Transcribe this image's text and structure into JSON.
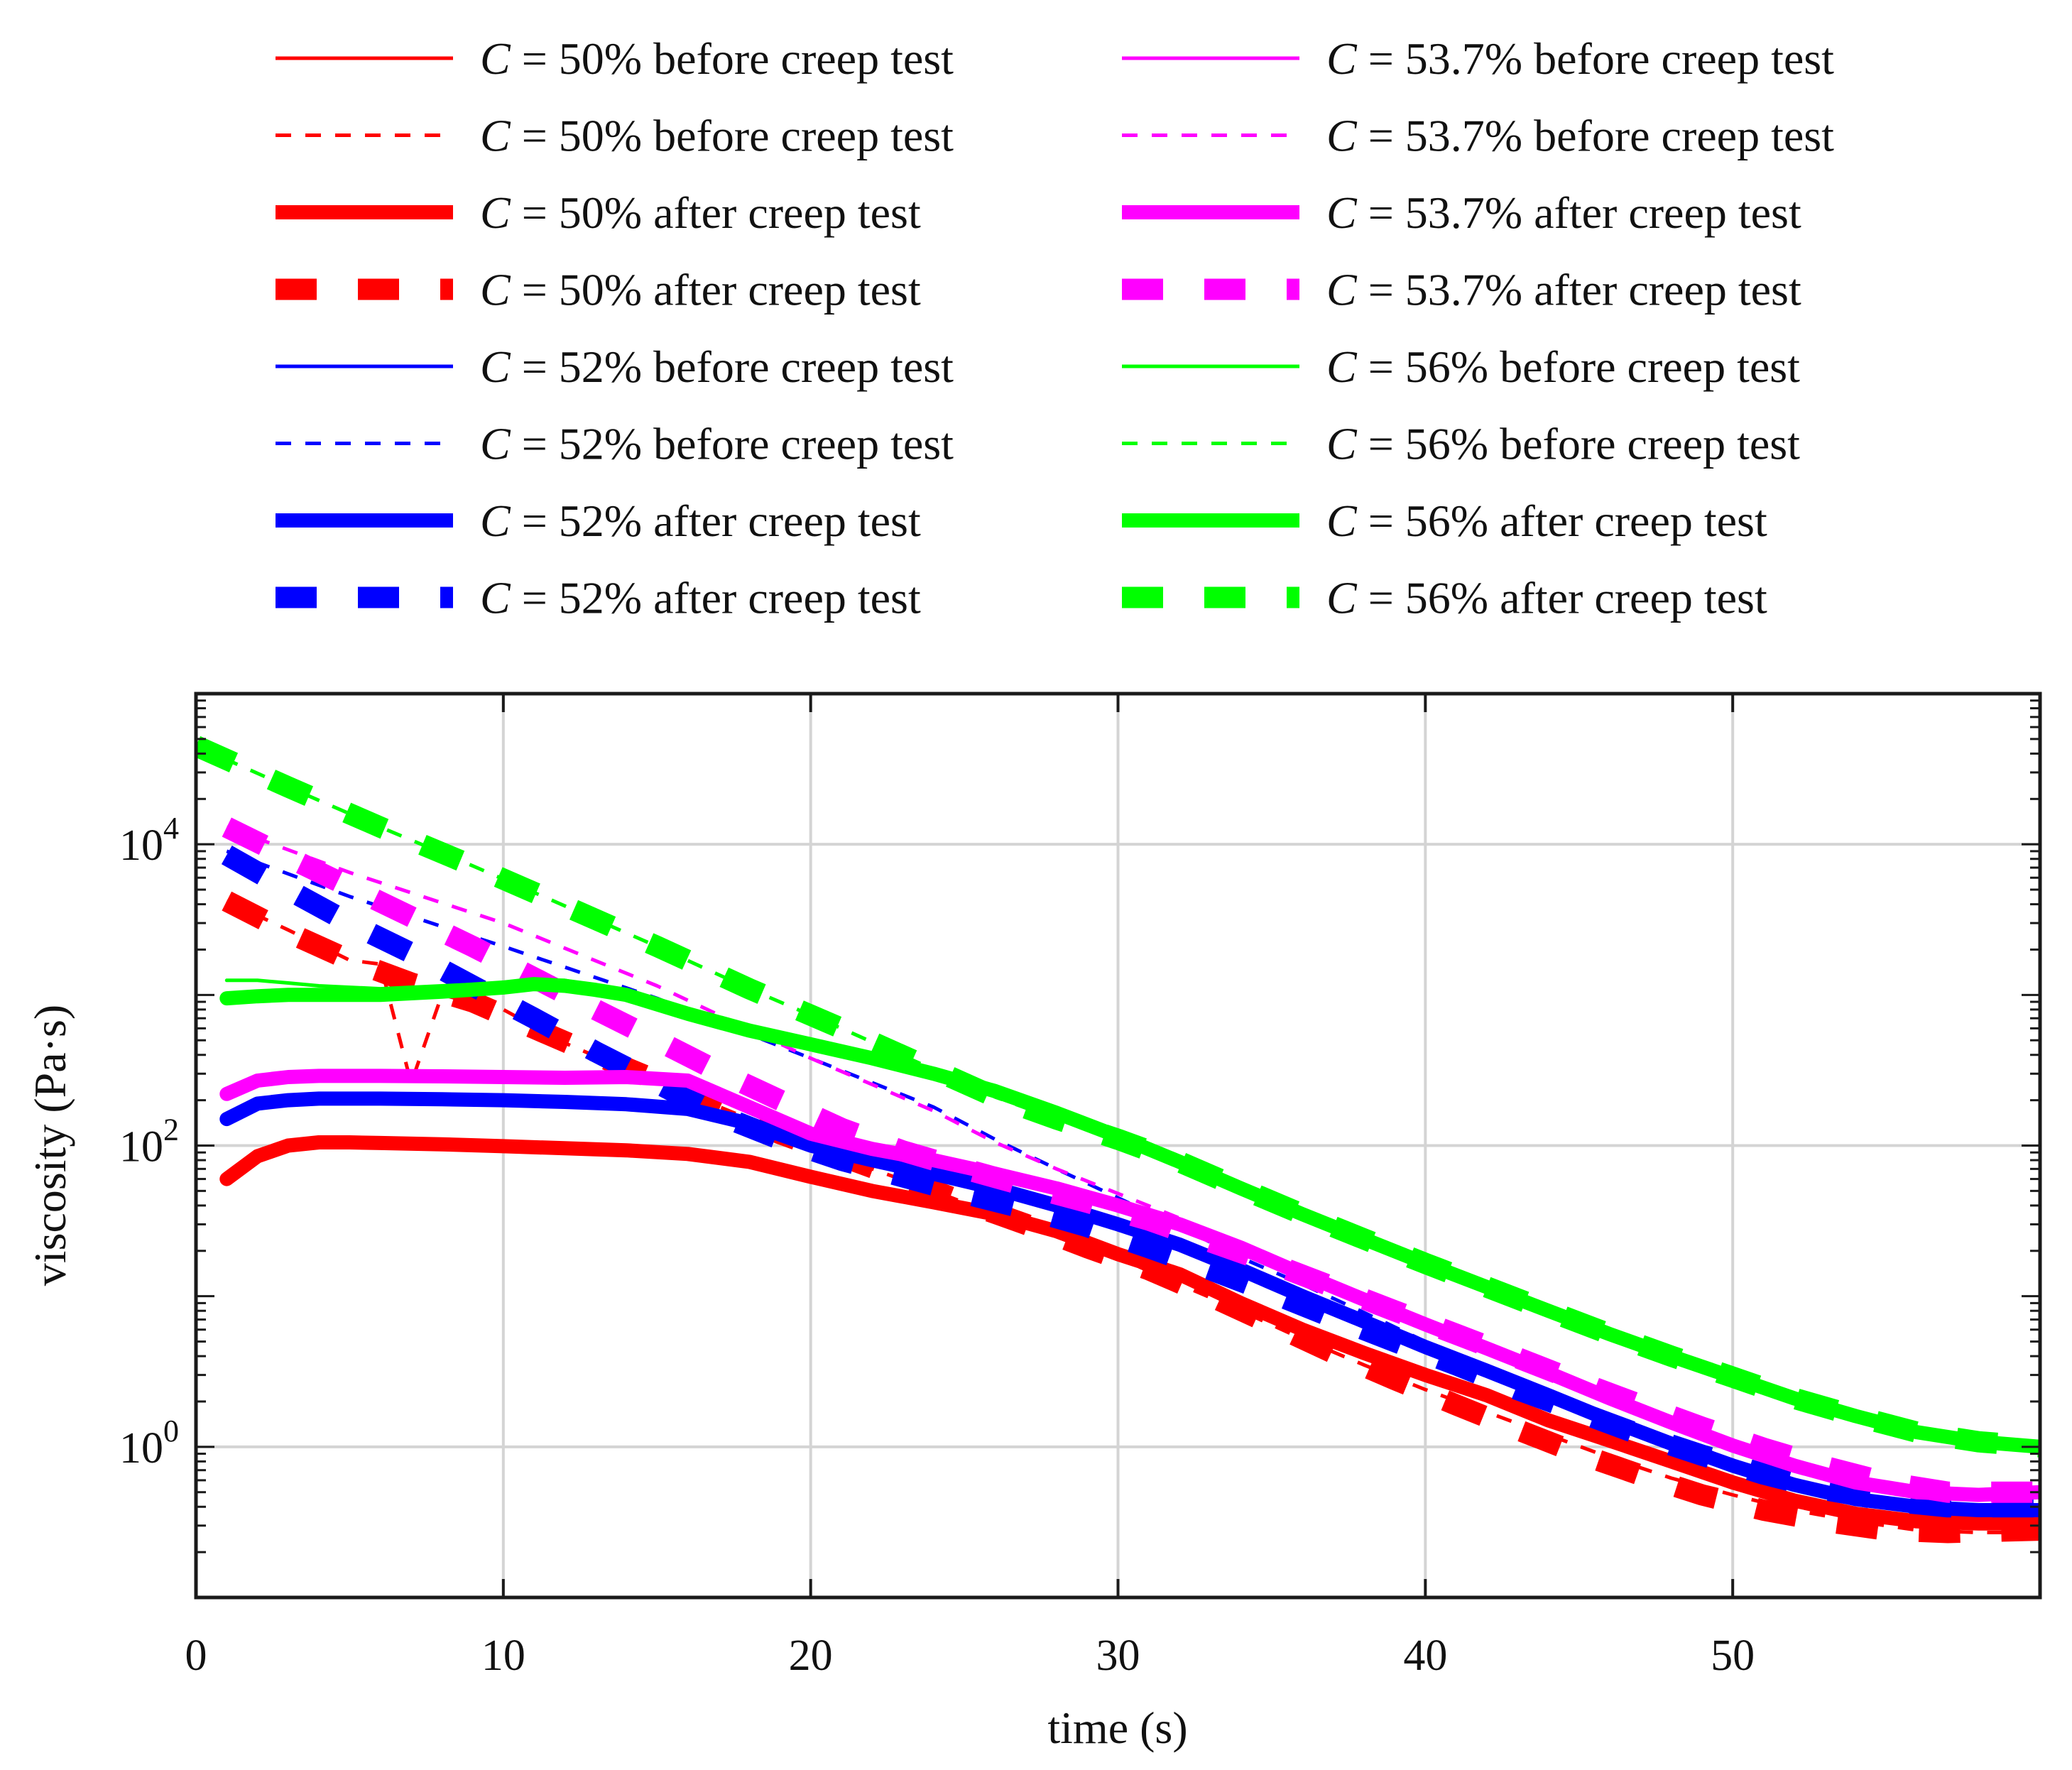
{
  "chart_data": {
    "type": "line",
    "title": "",
    "xlabel": "time (s)",
    "ylabel": "viscosity (Pa·s)",
    "xlim": [
      0,
      60
    ],
    "yscale": "log",
    "ylim": [
      0.1,
      100000
    ],
    "grid": true,
    "x_ticks": [
      0,
      10,
      20,
      30,
      40,
      50
    ],
    "x_tick_labels": [
      "0",
      "10",
      "20",
      "30",
      "40",
      "50"
    ],
    "y_ticks": [
      1,
      100,
      10000
    ],
    "y_tick_labels": [
      {
        "base": "10",
        "exp": "0"
      },
      {
        "base": "10",
        "exp": "2"
      },
      {
        "base": "10",
        "exp": "4"
      }
    ],
    "legend": {
      "placement": "top, two columns",
      "var": "C",
      "eq": " = "
    },
    "series": [
      {
        "name": "C = 50% before creep test",
        "conc": "50%",
        "desc": " before creep test",
        "color": "#ff0000",
        "style": "solid",
        "weight": "thin",
        "x": [
          1,
          2,
          3,
          4,
          5,
          6,
          8,
          10,
          12,
          14,
          16,
          18,
          20,
          22,
          24,
          26,
          28,
          30,
          32,
          34,
          36,
          38,
          40,
          42,
          44,
          46,
          48,
          50,
          52,
          54,
          56,
          58,
          60
        ],
        "y": [
          60,
          85,
          100,
          105,
          105,
          104,
          102,
          99,
          96,
          93,
          88,
          78,
          62,
          50,
          42,
          35,
          27,
          19,
          14,
          9,
          6,
          4.2,
          3,
          2.2,
          1.5,
          1.1,
          0.8,
          0.58,
          0.44,
          0.36,
          0.32,
          0.31,
          0.31
        ]
      },
      {
        "name": "C = 50% before creep test",
        "conc": "50%",
        "desc": " before creep test",
        "color": "#ff0000",
        "style": "dashed",
        "weight": "thin",
        "x": [
          1,
          3,
          5,
          6,
          7,
          8,
          10,
          12,
          14,
          16,
          18,
          20,
          22,
          24,
          26,
          28,
          30,
          32,
          34,
          36,
          38,
          40,
          42,
          44,
          46,
          48,
          50,
          52,
          54,
          56,
          58,
          60
        ],
        "y": [
          4200,
          2700,
          1700,
          1600,
          260,
          1000,
          800,
          480,
          320,
          220,
          150,
          100,
          70,
          50,
          35,
          25,
          18,
          12,
          8,
          5.2,
          3.5,
          2.4,
          1.7,
          1.2,
          0.85,
          0.62,
          0.48,
          0.38,
          0.32,
          0.28,
          0.27,
          0.27
        ]
      },
      {
        "name": "C = 50% after creep test",
        "conc": "50%",
        "desc": " after creep test",
        "color": "#ff0000",
        "style": "solid",
        "weight": "thick",
        "x": [
          1,
          2,
          3,
          4,
          5,
          6,
          8,
          10,
          12,
          14,
          16,
          18,
          20,
          22,
          24,
          26,
          28,
          30,
          32,
          34,
          36,
          38,
          40,
          42,
          44,
          46,
          48,
          50,
          52,
          54,
          56,
          58,
          60
        ],
        "y": [
          60,
          85,
          100,
          105,
          105,
          104,
          102,
          99,
          96,
          93,
          88,
          78,
          62,
          50,
          42,
          35,
          27,
          19,
          14,
          9,
          6,
          4.2,
          3,
          2.2,
          1.5,
          1.1,
          0.8,
          0.58,
          0.44,
          0.36,
          0.32,
          0.31,
          0.31
        ]
      },
      {
        "name": "C = 50% after creep test",
        "conc": "50%",
        "desc": " after creep test",
        "color": "#ff0000",
        "style": "dashed",
        "weight": "thick",
        "x": [
          1,
          3,
          5,
          7,
          9,
          11,
          13,
          15,
          17,
          19,
          21,
          23,
          25,
          27,
          29,
          31,
          33,
          35,
          37,
          39,
          41,
          43,
          45,
          47,
          49,
          51,
          53,
          55,
          57,
          60
        ],
        "y": [
          4200,
          2600,
          1700,
          1200,
          900,
          600,
          400,
          270,
          180,
          120,
          85,
          60,
          42,
          30,
          21,
          15,
          10,
          6.5,
          4.2,
          2.8,
          1.9,
          1.3,
          0.9,
          0.65,
          0.48,
          0.38,
          0.32,
          0.28,
          0.27,
          0.28
        ]
      },
      {
        "name": "C = 52% before creep test",
        "conc": "52%",
        "desc": " before creep test",
        "color": "#0000ff",
        "style": "solid",
        "weight": "thin",
        "x": [
          1,
          2,
          3,
          4,
          5,
          6,
          8,
          10,
          12,
          14,
          16,
          18,
          20,
          22,
          24,
          26,
          28,
          30,
          32,
          34,
          36,
          38,
          40,
          42,
          44,
          46,
          48,
          50,
          52,
          54,
          56,
          58,
          60
        ],
        "y": [
          150,
          190,
          200,
          205,
          205,
          205,
          203,
          200,
          195,
          188,
          175,
          140,
          100,
          80,
          65,
          52,
          40,
          30,
          22,
          15,
          10,
          6.8,
          4.6,
          3.2,
          2.2,
          1.5,
          1.05,
          0.75,
          0.56,
          0.45,
          0.4,
          0.38,
          0.38
        ]
      },
      {
        "name": "C = 52% before creep test",
        "conc": "52%",
        "desc": " before creep test",
        "color": "#0000ff",
        "style": "dashed",
        "weight": "thin",
        "x": [
          1,
          5,
          10,
          15,
          20,
          24,
          26,
          28,
          30,
          32,
          34,
          36,
          38,
          40,
          42,
          44,
          46,
          48,
          50,
          52,
          54,
          56,
          58,
          60
        ],
        "y": [
          9000,
          4500,
          2100,
          950,
          380,
          180,
          110,
          70,
          45,
          29,
          18,
          12,
          7.8,
          5,
          3.4,
          2.3,
          1.6,
          1.12,
          0.8,
          0.6,
          0.48,
          0.42,
          0.4,
          0.4
        ]
      },
      {
        "name": "C = 52% after creep test",
        "conc": "52%",
        "desc": " after creep test",
        "color": "#0000ff",
        "style": "solid",
        "weight": "thick",
        "x": [
          1,
          2,
          3,
          4,
          5,
          6,
          8,
          10,
          12,
          14,
          16,
          18,
          20,
          22,
          24,
          26,
          28,
          30,
          32,
          34,
          36,
          38,
          40,
          42,
          44,
          46,
          48,
          50,
          52,
          54,
          56,
          58,
          60
        ],
        "y": [
          150,
          190,
          200,
          205,
          205,
          205,
          203,
          200,
          195,
          188,
          175,
          140,
          100,
          80,
          65,
          52,
          40,
          30,
          22,
          15,
          10,
          6.8,
          4.6,
          3.2,
          2.2,
          1.5,
          1.05,
          0.75,
          0.56,
          0.45,
          0.4,
          0.38,
          0.38
        ]
      },
      {
        "name": "C = 52% after creep test",
        "conc": "52%",
        "desc": " after creep test",
        "color": "#0000ff",
        "style": "dashed",
        "weight": "thick",
        "x": [
          1,
          3,
          5,
          7,
          9,
          11,
          13,
          15,
          17,
          19,
          21,
          23,
          25,
          27,
          29,
          31,
          33,
          35,
          37,
          39,
          41,
          43,
          45,
          47,
          49,
          51,
          53,
          55,
          57,
          60
        ],
        "y": [
          8500,
          5000,
          3000,
          1900,
          1150,
          700,
          420,
          260,
          160,
          110,
          80,
          62,
          48,
          38,
          29,
          21,
          15,
          10.5,
          7.2,
          5,
          3.5,
          2.4,
          1.7,
          1.2,
          0.88,
          0.66,
          0.52,
          0.44,
          0.4,
          0.4
        ]
      },
      {
        "name": "C = 53.7% before creep test",
        "conc": "53.7%",
        "desc": " before creep test",
        "color": "#ff00ff",
        "style": "solid",
        "weight": "thin",
        "x": [
          1,
          2,
          3,
          4,
          5,
          6,
          8,
          10,
          12,
          14,
          16,
          18,
          20,
          22,
          24,
          26,
          28,
          30,
          32,
          34,
          36,
          38,
          40,
          42,
          44,
          46,
          48,
          50,
          52,
          54,
          56,
          58,
          60
        ],
        "y": [
          220,
          270,
          285,
          290,
          290,
          290,
          288,
          285,
          282,
          285,
          270,
          180,
          120,
          95,
          80,
          65,
          52,
          40,
          30,
          21,
          14,
          9.5,
          6.5,
          4.5,
          3.1,
          2.1,
          1.45,
          1.02,
          0.75,
          0.58,
          0.5,
          0.48,
          0.5
        ]
      },
      {
        "name": "C = 53.7% before creep test",
        "conc": "53.7%",
        "desc": " before creep test",
        "color": "#ff00ff",
        "style": "dashed",
        "weight": "thin",
        "x": [
          1,
          5,
          10,
          15,
          20,
          24,
          26,
          28,
          30,
          32,
          34,
          36,
          38,
          40,
          42,
          44,
          46,
          48,
          50,
          52,
          54,
          56,
          58,
          60
        ],
        "y": [
          13000,
          6500,
          3000,
          1150,
          380,
          170,
          105,
          70,
          48,
          33,
          22,
          15,
          10,
          6.8,
          4.6,
          3.1,
          2.1,
          1.45,
          1.02,
          0.75,
          0.58,
          0.5,
          0.48,
          0.5
        ]
      },
      {
        "name": "C = 53.7% after creep test",
        "conc": "53.7%",
        "desc": " after creep test",
        "color": "#ff00ff",
        "style": "solid",
        "weight": "thick",
        "x": [
          1,
          2,
          3,
          4,
          5,
          6,
          8,
          10,
          12,
          14,
          16,
          18,
          20,
          22,
          24,
          26,
          28,
          30,
          32,
          34,
          36,
          38,
          40,
          42,
          44,
          46,
          48,
          50,
          52,
          54,
          56,
          58,
          60
        ],
        "y": [
          220,
          270,
          285,
          290,
          290,
          290,
          288,
          285,
          282,
          285,
          270,
          180,
          120,
          95,
          80,
          65,
          52,
          40,
          30,
          21,
          14,
          9.5,
          6.5,
          4.5,
          3.1,
          2.1,
          1.45,
          1.02,
          0.75,
          0.58,
          0.5,
          0.48,
          0.5
        ]
      },
      {
        "name": "C = 53.7% after creep test",
        "conc": "53.7%",
        "desc": " after creep test",
        "color": "#ff00ff",
        "style": "dashed",
        "weight": "thick",
        "x": [
          1,
          3,
          5,
          7,
          9,
          11,
          13,
          15,
          17,
          19,
          21,
          23,
          25,
          27,
          29,
          31,
          33,
          35,
          37,
          39,
          41,
          43,
          45,
          47,
          49,
          51,
          53,
          55,
          57,
          60
        ],
        "y": [
          13000,
          8200,
          5200,
          3300,
          2100,
          1300,
          800,
          500,
          310,
          200,
          130,
          92,
          70,
          54,
          42,
          32,
          23,
          16.5,
          11.5,
          8,
          5.6,
          3.9,
          2.7,
          1.9,
          1.35,
          0.98,
          0.74,
          0.58,
          0.5,
          0.5
        ]
      },
      {
        "name": "C = 56% before creep test",
        "conc": "56%",
        "desc": " before creep test",
        "color": "#00ff00",
        "style": "solid",
        "weight": "thin",
        "x": [
          1,
          2,
          3,
          4,
          6,
          8,
          10,
          11,
          12,
          13,
          14,
          16,
          18,
          20,
          22,
          24,
          26,
          28,
          30,
          32,
          34,
          36,
          38,
          40,
          42,
          44,
          46,
          48,
          50,
          52,
          54,
          56,
          58,
          60
        ],
        "y": [
          1250,
          1250,
          1200,
          1150,
          1100,
          1150,
          1200,
          1250,
          1250,
          1150,
          1000,
          750,
          580,
          470,
          380,
          300,
          230,
          165,
          115,
          78,
          52,
          35,
          24,
          16.5,
          11.5,
          8,
          5.6,
          4,
          2.9,
          2.1,
          1.6,
          1.25,
          1.08,
          1
        ]
      },
      {
        "name": "C = 56% before creep test",
        "conc": "56%",
        "desc": " before creep test",
        "color": "#00ff00",
        "style": "dashed",
        "weight": "thin",
        "x": [
          0,
          3,
          6,
          9,
          12,
          15,
          18,
          21,
          24,
          26,
          28,
          30,
          32,
          34,
          36,
          38,
          40,
          42,
          44,
          46,
          48,
          50,
          52,
          54,
          56,
          58,
          60
        ],
        "y": [
          45000,
          24000,
          13000,
          7200,
          3900,
          2100,
          1100,
          600,
          320,
          210,
          150,
          110,
          78,
          52,
          35,
          24,
          16.5,
          11.5,
          8,
          5.6,
          4,
          2.9,
          2.1,
          1.6,
          1.25,
          1.08,
          1
        ]
      },
      {
        "name": "C = 56% after creep test",
        "conc": "56%",
        "desc": " after creep test",
        "color": "#00ff00",
        "style": "solid",
        "weight": "thick",
        "x": [
          1,
          2,
          3,
          4,
          6,
          8,
          10,
          11,
          12,
          13,
          14,
          16,
          18,
          20,
          22,
          24,
          26,
          28,
          30,
          32,
          34,
          36,
          38,
          40,
          42,
          44,
          46,
          48,
          50,
          52,
          54,
          56,
          58,
          60
        ],
        "y": [
          950,
          980,
          1000,
          1000,
          1000,
          1050,
          1120,
          1180,
          1150,
          1080,
          1000,
          750,
          580,
          470,
          380,
          300,
          230,
          165,
          115,
          78,
          52,
          35,
          24,
          16.5,
          11.5,
          8,
          5.6,
          4,
          2.9,
          2.1,
          1.6,
          1.25,
          1.08,
          1
        ]
      },
      {
        "name": "C = 56% after creep test",
        "conc": "56%",
        "desc": " after creep test",
        "color": "#00ff00",
        "style": "dashed",
        "weight": "thick",
        "x": [
          0,
          3,
          6,
          9,
          12,
          15,
          18,
          21,
          24,
          26,
          28,
          30,
          32,
          34,
          36,
          38,
          40,
          42,
          44,
          46,
          48,
          50,
          52,
          54,
          56,
          58,
          60
        ],
        "y": [
          45000,
          24000,
          13000,
          7200,
          3900,
          2100,
          1100,
          600,
          320,
          210,
          150,
          110,
          78,
          52,
          35,
          24,
          16.5,
          11.5,
          8,
          5.6,
          4,
          2.9,
          2.1,
          1.6,
          1.25,
          1.08,
          1
        ]
      }
    ]
  }
}
